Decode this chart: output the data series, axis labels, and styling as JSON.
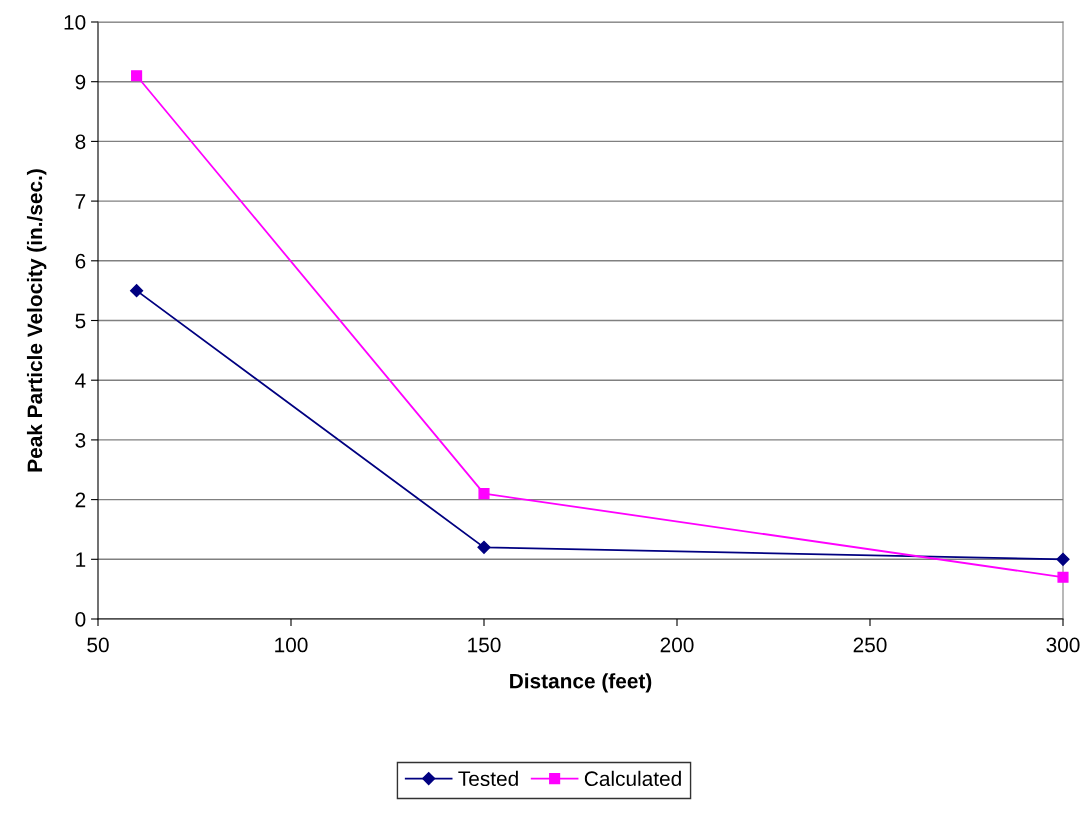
{
  "chart_data": {
    "type": "line",
    "xlabel": "Distance (feet)",
    "ylabel": "Peak Particle Velocity (in./sec.)",
    "series": [
      {
        "name": "Tested",
        "color": "#000080",
        "marker": "diamond",
        "x": [
          60,
          150,
          300
        ],
        "values": [
          5.5,
          1.2,
          1.0
        ]
      },
      {
        "name": "Calculated",
        "color": "#ff00ff",
        "marker": "square",
        "x": [
          60,
          150,
          300
        ],
        "values": [
          9.1,
          2.1,
          0.7
        ]
      }
    ],
    "xlim": [
      50,
      300
    ],
    "xticks": [
      50,
      100,
      150,
      200,
      250,
      300
    ],
    "ylim": [
      0,
      10
    ],
    "yticks": [
      0,
      1,
      2,
      3,
      4,
      5,
      6,
      7,
      8,
      9,
      10
    ],
    "grid": "y",
    "legend": "bottom",
    "line_style": "solid"
  }
}
